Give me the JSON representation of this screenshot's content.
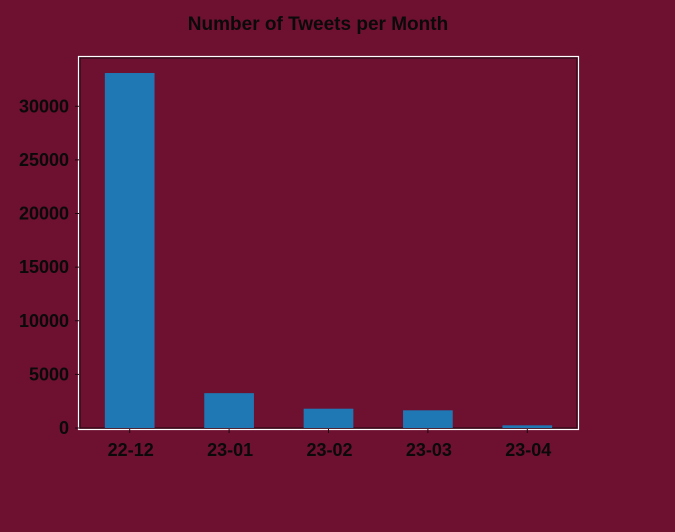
{
  "chart_data": {
    "type": "bar",
    "title": "Number of Tweets per Month",
    "xlabel": "",
    "ylabel": "",
    "categories": [
      "22-12",
      "23-01",
      "23-02",
      "23-03",
      "23-04"
    ],
    "values": [
      33100,
      3250,
      1800,
      1650,
      250
    ],
    "ylim": [
      0,
      34500
    ],
    "yticks": [
      0,
      5000,
      10000,
      15000,
      20000,
      25000,
      30000
    ],
    "grid": false,
    "legend": "none",
    "colors": {
      "background": "#6e1030",
      "bar": "#1f77b4",
      "frame": "#ffffff",
      "text": "#0a0a0a"
    }
  }
}
